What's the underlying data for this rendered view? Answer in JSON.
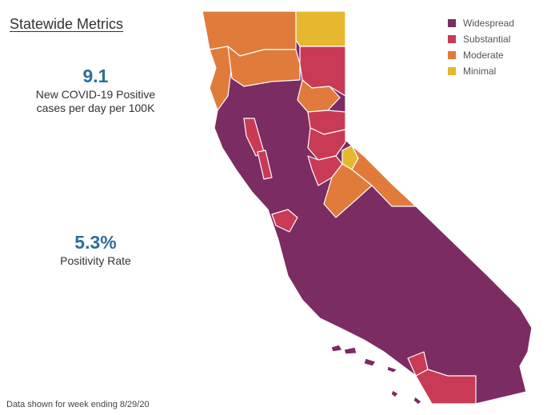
{
  "title": "Statewide Metrics",
  "metrics": [
    {
      "value": "9.1",
      "label_lines": [
        "New COVID-19 Positive",
        "cases per day per 100K"
      ]
    },
    {
      "value": "5.3%",
      "label_lines": [
        "Positivity Rate"
      ]
    }
  ],
  "metric_color": "#2e6d99",
  "legend": [
    {
      "label": "Widespread",
      "color": "#7b2c62"
    },
    {
      "label": "Substantial",
      "color": "#c93a55"
    },
    {
      "label": "Moderate",
      "color": "#e07b3c"
    },
    {
      "label": "Minimal",
      "color": "#e5b830"
    }
  ],
  "footnote": "Data shown for week ending 8/29/20"
}
